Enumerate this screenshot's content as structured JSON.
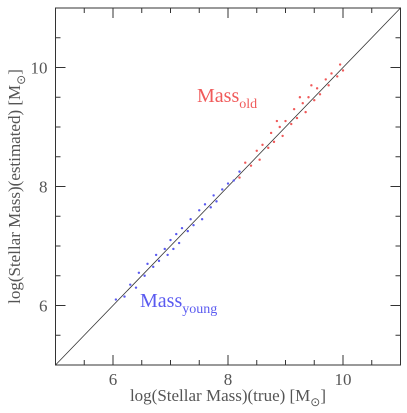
{
  "chart_data": {
    "type": "scatter",
    "xlabel": {
      "text": "log(Stellar Mass)(true) [M",
      "sub": "⊙",
      "end": "]"
    },
    "ylabel": {
      "text": "log(Stellar Mass)(estimated) [M",
      "sub": "⊙",
      "end": "]"
    },
    "xlim": [
      5,
      11
    ],
    "ylim": [
      5,
      11
    ],
    "xticks": [
      6,
      8,
      10
    ],
    "yticks": [
      6,
      8,
      10
    ],
    "xminorticks": [
      5.5,
      6.5,
      7,
      7.5,
      8.5,
      9,
      9.5,
      10.5
    ],
    "yminorticks": [
      5.5,
      6.5,
      7,
      7.5,
      8.5,
      9,
      9.5,
      10.5
    ],
    "diagonal": true,
    "series": [
      {
        "name": "young",
        "color": "#5a5af0",
        "x": [
          6.05,
          6.2,
          6.3,
          6.4,
          6.45,
          6.55,
          6.6,
          6.7,
          6.75,
          6.8,
          6.9,
          6.95,
          7.0,
          7.05,
          7.1,
          7.15,
          7.2,
          7.3,
          7.35,
          7.4,
          7.5,
          7.55,
          7.6,
          7.7,
          7.75,
          7.8,
          7.9,
          8.0,
          8.1,
          8.2
        ],
        "values": [
          6.1,
          6.15,
          6.35,
          6.3,
          6.55,
          6.5,
          6.7,
          6.65,
          6.85,
          6.75,
          6.95,
          6.85,
          7.1,
          6.95,
          7.2,
          7.05,
          7.3,
          7.25,
          7.45,
          7.35,
          7.6,
          7.45,
          7.7,
          7.65,
          7.85,
          7.75,
          7.95,
          8.05,
          8.1,
          8.25
        ]
      },
      {
        "name": "old",
        "color": "#f05a5a",
        "x": [
          8.2,
          8.3,
          8.4,
          8.5,
          8.55,
          8.6,
          8.7,
          8.75,
          8.8,
          8.9,
          8.95,
          9.0,
          9.1,
          9.15,
          9.2,
          9.3,
          9.35,
          9.4,
          9.5,
          9.55,
          9.6,
          9.7,
          9.75,
          9.8,
          9.9,
          9.95,
          10.0,
          9.45,
          9.25,
          8.85
        ],
        "values": [
          8.15,
          8.4,
          8.35,
          8.6,
          8.45,
          8.7,
          8.65,
          8.9,
          8.75,
          9.0,
          8.85,
          9.1,
          9.05,
          9.3,
          9.15,
          9.4,
          9.25,
          9.5,
          9.45,
          9.65,
          9.55,
          9.8,
          9.7,
          9.9,
          9.85,
          10.05,
          9.95,
          9.7,
          9.5,
          9.1
        ]
      }
    ],
    "annotations": [
      {
        "text": "Mass",
        "sub": "old",
        "color": "#f05a5a"
      },
      {
        "text": "Mass",
        "sub": "young",
        "color": "#5a5af0"
      }
    ]
  }
}
